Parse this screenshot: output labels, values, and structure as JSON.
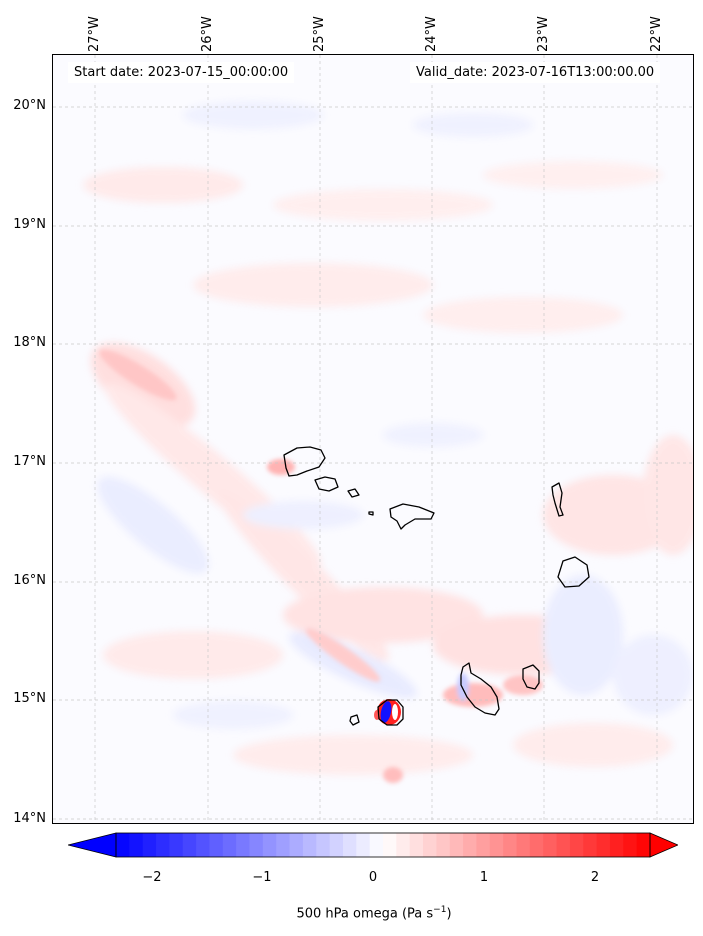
{
  "map": {
    "start_label": "Start date: 2023-07-15_00:00:00",
    "valid_label": "Valid_date: 2023-07-16T13:00:00.00",
    "lon_ticks": [
      "27°W",
      "26°W",
      "25°W",
      "24°W",
      "23°W",
      "22°W"
    ],
    "lat_ticks": [
      "20°N",
      "19°N",
      "18°N",
      "17°N",
      "16°N",
      "15°N",
      "14°N"
    ],
    "extent": {
      "lon_min": -27.33,
      "lon_max": -21.73,
      "lat_min": 13.94,
      "lat_max": 20.42
    },
    "gridlines": true,
    "colormap": "bwr",
    "coastline_color": "#000000",
    "islands": [
      "Santo Antão",
      "São Vicente",
      "Santa Luzia",
      "São Nicolau",
      "Sal",
      "Boa Vista",
      "Maio",
      "Santiago",
      "Fogo",
      "Brava"
    ]
  },
  "colorbar": {
    "label_main": "500 hPa omega (Pa s",
    "label_sup": "−1",
    "label_end": ")",
    "ticks": [
      "−2",
      "−1",
      "0",
      "1",
      "2"
    ],
    "tick_values": [
      -2,
      -1,
      0,
      1,
      2
    ],
    "vmin": -2.5,
    "vmax": 2.5,
    "extend": "both",
    "low_color": "#0000ff",
    "mid_color": "#ffffff",
    "high_color": "#ff0000"
  }
}
